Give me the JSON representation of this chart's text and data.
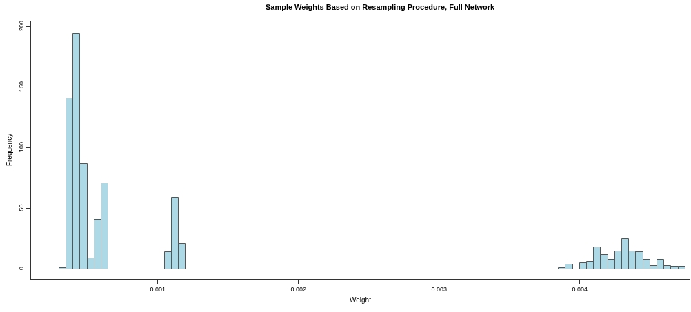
{
  "chart_data": {
    "type": "histogram",
    "title": "Sample Weights Based on Resampling Procedure, Full Network",
    "xlabel": "Weight",
    "ylabel": "Frequency",
    "bins": [
      0.0003,
      0.00035,
      0.0004,
      0.00045,
      0.0005,
      0.00055,
      0.0006,
      0.00065,
      0.0007,
      0.00075,
      0.0008,
      0.00085,
      0.0009,
      0.00095,
      0.001,
      0.00105,
      0.0011,
      0.00115,
      0.0012,
      0.00125,
      0.0013,
      0.00135,
      0.0014,
      0.00145,
      0.0015,
      0.00155,
      0.0016,
      0.00165,
      0.0017,
      0.00175,
      0.0018,
      0.00185,
      0.0019,
      0.00195,
      0.002,
      0.00205,
      0.0021,
      0.00215,
      0.0022,
      0.00225,
      0.0023,
      0.00235,
      0.0024,
      0.00245,
      0.0025,
      0.00255,
      0.0026,
      0.00265,
      0.0027,
      0.00275,
      0.0028,
      0.00285,
      0.0029,
      0.00295,
      0.003,
      0.00305,
      0.0031,
      0.00315,
      0.0032,
      0.00325,
      0.0033,
      0.00335,
      0.0034,
      0.00345,
      0.0035,
      0.00355,
      0.0036,
      0.00365,
      0.0037,
      0.00375,
      0.0038,
      0.00385,
      0.0039,
      0.00395,
      0.004,
      0.00405,
      0.0041,
      0.00415,
      0.0042,
      0.00425,
      0.0043,
      0.00435,
      0.0044,
      0.00445,
      0.0045,
      0.00455,
      0.0046,
      0.00465,
      0.0047,
      0.00475
    ],
    "values": [
      1,
      141,
      194,
      87,
      9,
      41,
      71,
      0,
      0,
      0,
      0,
      0,
      0,
      0,
      0,
      14,
      59,
      21,
      0,
      0,
      0,
      0,
      0,
      0,
      0,
      0,
      0,
      0,
      0,
      0,
      0,
      0,
      0,
      0,
      0,
      0,
      0,
      0,
      0,
      0,
      0,
      0,
      0,
      0,
      0,
      0,
      0,
      0,
      0,
      0,
      0,
      0,
      0,
      0,
      0,
      0,
      0,
      0,
      0,
      0,
      0,
      0,
      0,
      0,
      0,
      0,
      0,
      0,
      0,
      0,
      0,
      1,
      4,
      0,
      5,
      6,
      18,
      12,
      8,
      15,
      25,
      15,
      14,
      8,
      3,
      8,
      3,
      2,
      2
    ],
    "color": "#add8e6",
    "xlim": [
      0.0001,
      0.00478
    ],
    "ylim": [
      -8,
      205
    ],
    "xticks": [
      0.001,
      0.002,
      0.003,
      0.004
    ],
    "yticks": [
      0,
      50,
      100,
      150,
      200
    ],
    "grid": false,
    "legend": false
  }
}
